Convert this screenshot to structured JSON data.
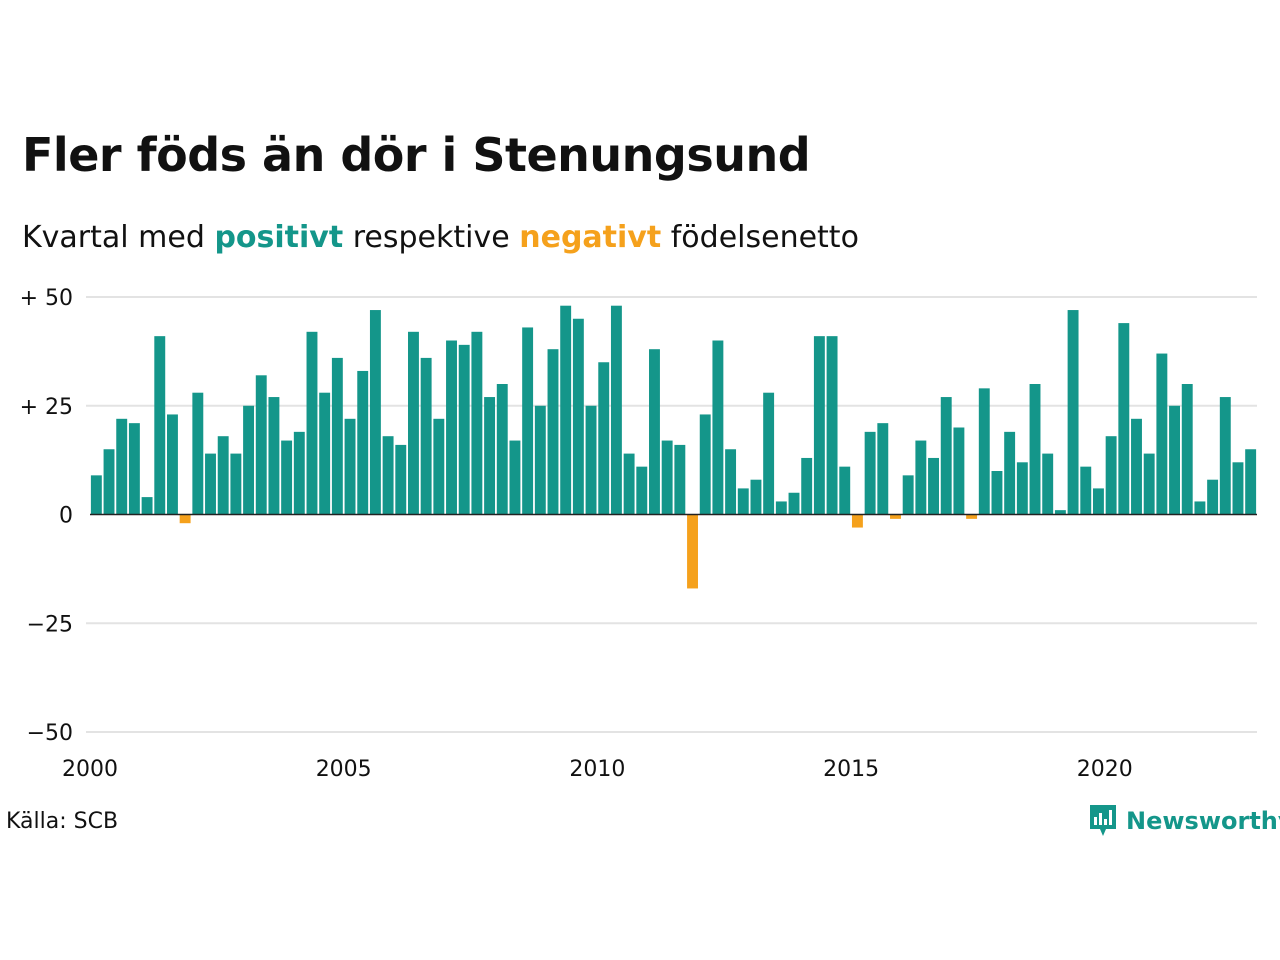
{
  "header": {
    "title": "Fler föds än dör i Stenungsund",
    "subtitle_prefix": "Kvartal med",
    "subtitle_positive": "positivt",
    "subtitle_middle": "respektive",
    "subtitle_negative": "negativt",
    "subtitle_suffix": "födelsenetto"
  },
  "footer": {
    "source": "Källa: SCB",
    "brand": "Newsworthy"
  },
  "colors": {
    "positive": "#14968a",
    "negative": "#f5a11c",
    "grid": "#e3e3e3",
    "axis": "#222222"
  },
  "chart_data": {
    "type": "bar",
    "x_start": "2000-Q1",
    "x_ticks": [
      2000,
      2005,
      2010,
      2015,
      2020
    ],
    "y_ticks": [
      50,
      25,
      0,
      -25,
      -50
    ],
    "y_tick_labels": [
      "+ 50",
      "+ 25",
      "0",
      "−25",
      "−50"
    ],
    "ylim": [
      -50,
      50
    ],
    "grid": true,
    "values": [
      9,
      15,
      22,
      21,
      4,
      41,
      23,
      -2,
      28,
      14,
      18,
      14,
      25,
      32,
      27,
      17,
      19,
      42,
      28,
      36,
      22,
      33,
      47,
      18,
      16,
      42,
      36,
      22,
      40,
      39,
      42,
      27,
      30,
      17,
      43,
      25,
      38,
      48,
      45,
      25,
      35,
      48,
      14,
      11,
      38,
      17,
      16,
      -17,
      23,
      40,
      15,
      6,
      8,
      28,
      3,
      5,
      13,
      41,
      41,
      11,
      -3,
      19,
      21,
      -1,
      9,
      17,
      13,
      27,
      20,
      -1,
      29,
      10,
      19,
      12,
      30,
      14,
      1,
      47,
      11,
      6,
      18,
      44,
      22,
      14,
      37,
      25,
      30,
      3,
      8,
      27,
      12,
      15
    ]
  }
}
